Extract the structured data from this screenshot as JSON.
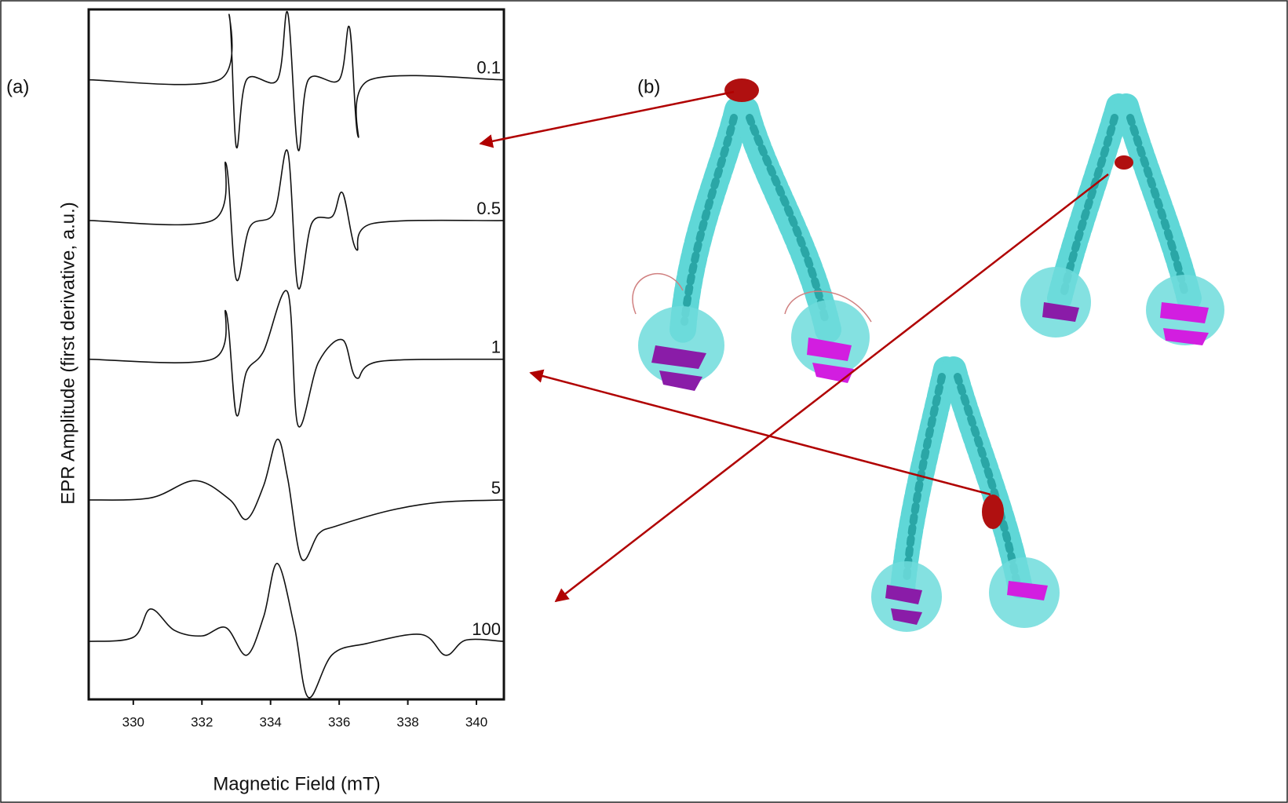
{
  "chart_data": {
    "type": "line",
    "x_label": "Magnetic Field (mT)",
    "y_label": "EPR Amplitude (first derivative, a.u.)",
    "annotations": [
      "(a)",
      "(b)"
    ],
    "xlim": [
      328.7,
      340.8
    ],
    "xticks": [
      330,
      332,
      334,
      336,
      338,
      340
    ],
    "ylim": [
      0,
      100
    ],
    "color": "#111111",
    "series": [
      {
        "name": "0.1",
        "x": [
          328.7,
          332.5,
          332.8,
          333.0,
          333.3,
          334.2,
          334.5,
          334.8,
          335.1,
          336.0,
          336.3,
          336.55,
          336.9,
          340.8
        ],
        "values": [
          89.8,
          89.8,
          99.1,
          80.1,
          89.8,
          89.8,
          99.5,
          79.7,
          89.8,
          89.8,
          97.4,
          81.6,
          89.8,
          89.8
        ]
      },
      {
        "name": "0.5",
        "x": [
          328.7,
          332.3,
          332.7,
          333.0,
          333.4,
          334.1,
          334.5,
          334.8,
          335.2,
          335.8,
          336.1,
          336.5,
          337.0,
          340.8
        ],
        "values": [
          69.4,
          69.4,
          77.7,
          60.9,
          68.5,
          70.5,
          79.4,
          59.7,
          69.0,
          70.0,
          73.4,
          65.2,
          69.0,
          69.4
        ]
      },
      {
        "name": "1",
        "x": [
          328.7,
          332.3,
          332.7,
          333.0,
          333.3,
          333.8,
          334.5,
          334.8,
          335.4,
          336.1,
          336.5,
          337.2,
          340.8
        ],
        "values": [
          49.3,
          49.3,
          56.2,
          41.3,
          47.5,
          50.5,
          59.0,
          39.7,
          48.9,
          52.1,
          46.6,
          49.0,
          49.3
        ]
      },
      {
        "name": "5",
        "x": [
          328.7,
          330.5,
          331.8,
          332.8,
          333.3,
          333.8,
          334.2,
          334.5,
          334.9,
          335.4,
          335.9,
          337.5,
          339.0,
          340.8
        ],
        "values": [
          28.9,
          29.2,
          31.7,
          29.0,
          26.1,
          31.0,
          37.7,
          32.0,
          20.4,
          24.0,
          25.1,
          27.4,
          28.6,
          28.9
        ]
      },
      {
        "name": "100",
        "x": [
          328.7,
          330.0,
          330.5,
          331.2,
          332.0,
          332.7,
          333.3,
          333.8,
          334.2,
          334.7,
          335.1,
          335.8,
          336.8,
          338.4,
          339.1,
          339.7,
          340.8
        ],
        "values": [
          8.4,
          9.0,
          13.1,
          10.0,
          9.2,
          10.4,
          6.4,
          12.0,
          19.7,
          10.4,
          0.3,
          6.5,
          8.1,
          9.4,
          6.4,
          8.6,
          8.4
        ]
      }
    ]
  }
}
